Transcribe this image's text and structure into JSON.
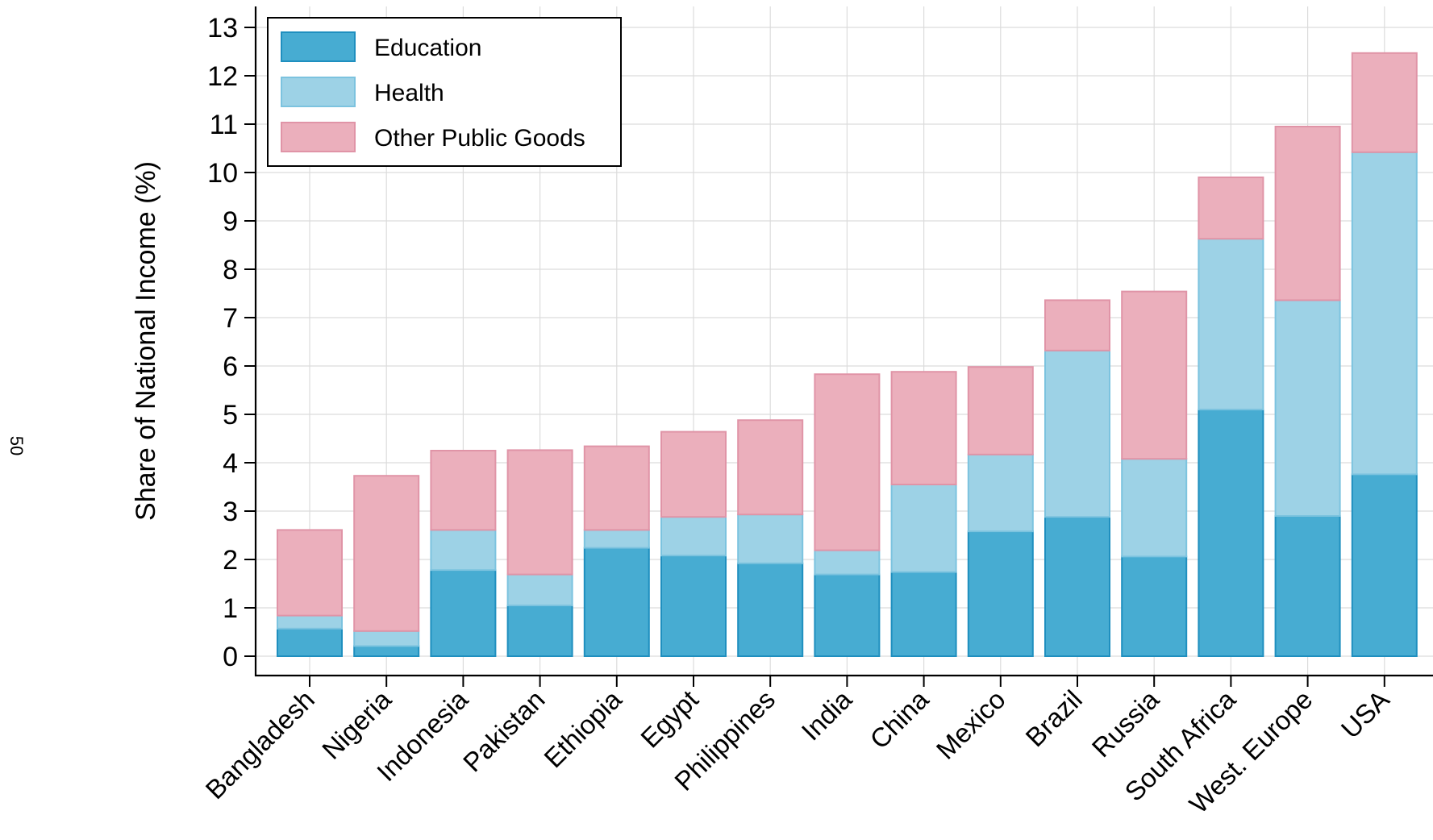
{
  "page_number": "50",
  "chart_data": {
    "type": "bar",
    "stacked": true,
    "title": "",
    "xlabel": "",
    "ylabel": "Share of National Income (%)",
    "ylim": [
      0,
      13
    ],
    "yticks": [
      "0",
      "1",
      "2",
      "3",
      "4",
      "5",
      "6",
      "7",
      "8",
      "9",
      "10",
      "11",
      "12",
      "13"
    ],
    "grid": true,
    "legend_position": "top-left",
    "categories": [
      "Bangladesh",
      "Nigeria",
      "Indonesia",
      "Pakistan",
      "Ethiopia",
      "Egypt",
      "Philippines",
      "India",
      "China",
      "Mexico",
      "Brazil",
      "Russia",
      "South Africa",
      "West. Europe",
      "USA"
    ],
    "series": [
      {
        "name": "Education",
        "color": "#47acd2",
        "edge": "#1f8fbf",
        "values": [
          0.57,
          0.21,
          1.78,
          1.05,
          2.24,
          2.08,
          1.92,
          1.69,
          1.74,
          2.58,
          2.88,
          2.06,
          5.1,
          2.9,
          3.76
        ]
      },
      {
        "name": "Health",
        "color": "#9dd2e6",
        "edge": "#7cc3df",
        "values": [
          0.27,
          0.31,
          0.83,
          0.64,
          0.37,
          0.8,
          1.01,
          0.5,
          1.81,
          1.59,
          3.44,
          2.02,
          3.53,
          4.46,
          6.66
        ]
      },
      {
        "name": "Other Public Goods",
        "color": "#ebafbc",
        "edge": "#e094a7",
        "values": [
          1.77,
          3.21,
          1.64,
          2.57,
          1.73,
          1.76,
          1.95,
          3.64,
          2.33,
          1.81,
          1.04,
          3.46,
          1.27,
          3.59,
          2.05
        ]
      }
    ]
  }
}
